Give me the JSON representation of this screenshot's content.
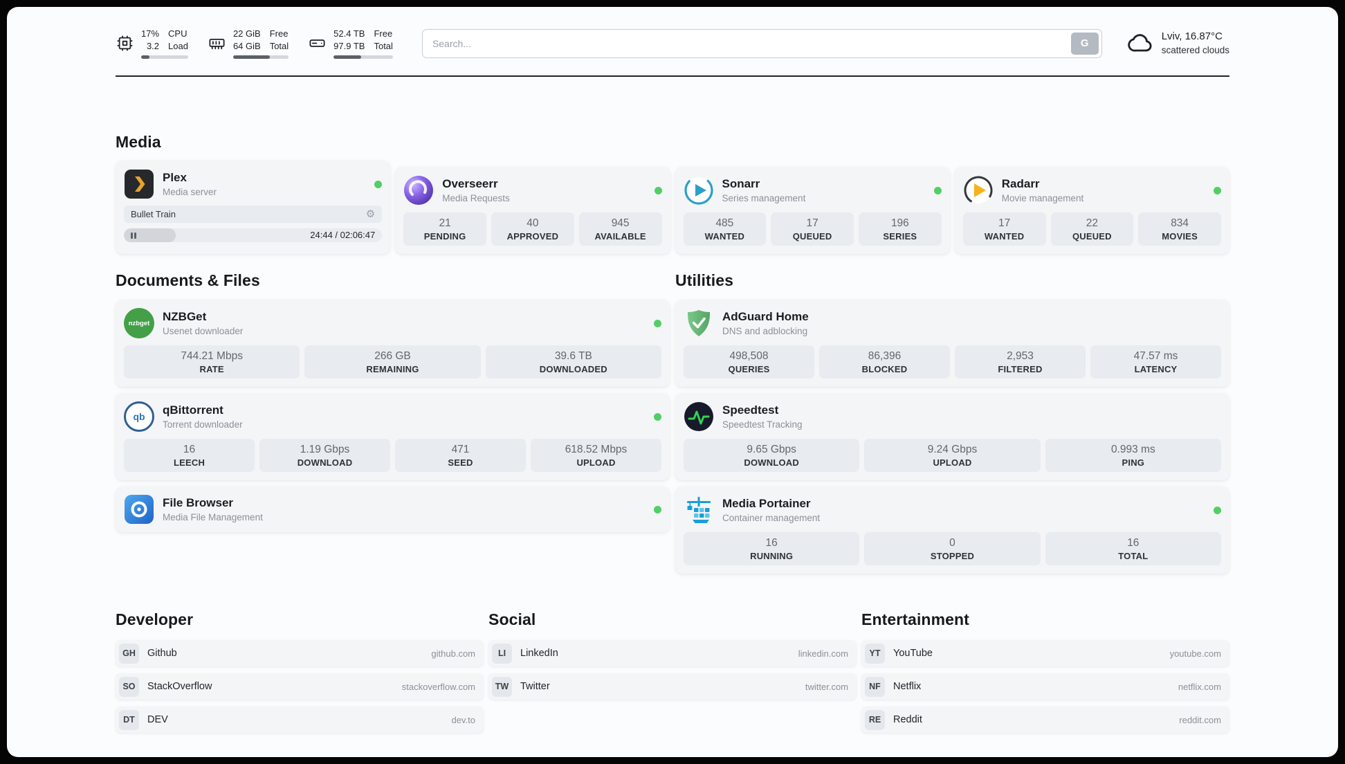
{
  "colors": {
    "status_online": "#51cf66",
    "plex_orange": "#e8a22b",
    "accent_blue": "#1a9fd6"
  },
  "header": {
    "cpu": {
      "value_top": "17%",
      "value_bottom": "3.2",
      "label_top": "CPU",
      "label_bottom": "Load",
      "bar": "17%"
    },
    "ram": {
      "value_top": "22 GiB",
      "value_bottom": "64 GiB",
      "label_top": "Free",
      "label_bottom": "Total",
      "bar": "66%"
    },
    "disk": {
      "value_top": "52.4 TB",
      "value_bottom": "97.9 TB",
      "label_top": "Free",
      "label_bottom": "Total",
      "bar": "46%"
    },
    "search": {
      "placeholder": "Search...",
      "engine_label": "G"
    },
    "weather": {
      "location": "Lviv, 16.87°C",
      "condition": "scattered clouds"
    }
  },
  "sections": {
    "media": {
      "title": "Media",
      "plex": {
        "name": "Plex",
        "subtitle": "Media server",
        "now_playing": "Bullet Train",
        "time": "24:44 / 02:06:47",
        "progress": "20%"
      },
      "overseerr": {
        "name": "Overseerr",
        "subtitle": "Media Requests",
        "stats": [
          {
            "value": "21",
            "label": "PENDING"
          },
          {
            "value": "40",
            "label": "APPROVED"
          },
          {
            "value": "945",
            "label": "AVAILABLE"
          }
        ]
      },
      "sonarr": {
        "name": "Sonarr",
        "subtitle": "Series management",
        "stats": [
          {
            "value": "485",
            "label": "WANTED"
          },
          {
            "value": "17",
            "label": "QUEUED"
          },
          {
            "value": "196",
            "label": "SERIES"
          }
        ]
      },
      "radarr": {
        "name": "Radarr",
        "subtitle": "Movie management",
        "stats": [
          {
            "value": "17",
            "label": "WANTED"
          },
          {
            "value": "22",
            "label": "QUEUED"
          },
          {
            "value": "834",
            "label": "MOVIES"
          }
        ]
      }
    },
    "documents": {
      "title": "Documents & Files",
      "nzbget": {
        "name": "NZBGet",
        "subtitle": "Usenet downloader",
        "icon_label": "nzbget",
        "stats": [
          {
            "value": "744.21 Mbps",
            "label": "RATE"
          },
          {
            "value": "266 GB",
            "label": "REMAINING"
          },
          {
            "value": "39.6 TB",
            "label": "DOWNLOADED"
          }
        ]
      },
      "qbittorrent": {
        "name": "qBittorrent",
        "subtitle": "Torrent downloader",
        "icon_label": "qb",
        "stats": [
          {
            "value": "16",
            "label": "LEECH"
          },
          {
            "value": "1.19 Gbps",
            "label": "DOWNLOAD"
          },
          {
            "value": "471",
            "label": "SEED"
          },
          {
            "value": "618.52 Mbps",
            "label": "UPLOAD"
          }
        ]
      },
      "filebrowser": {
        "name": "File Browser",
        "subtitle": "Media File Management"
      }
    },
    "utilities": {
      "title": "Utilities",
      "adguard": {
        "name": "AdGuard Home",
        "subtitle": "DNS and adblocking",
        "stats": [
          {
            "value": "498,508",
            "label": "QUERIES"
          },
          {
            "value": "86,396",
            "label": "BLOCKED"
          },
          {
            "value": "2,953",
            "label": "FILTERED"
          },
          {
            "value": "47.57 ms",
            "label": "LATENCY"
          }
        ]
      },
      "speedtest": {
        "name": "Speedtest",
        "subtitle": "Speedtest Tracking",
        "stats": [
          {
            "value": "9.65 Gbps",
            "label": "DOWNLOAD"
          },
          {
            "value": "9.24 Gbps",
            "label": "UPLOAD"
          },
          {
            "value": "0.993 ms",
            "label": "PING"
          }
        ]
      },
      "portainer": {
        "name": "Media Portainer",
        "subtitle": "Container management",
        "stats": [
          {
            "value": "16",
            "label": "RUNNING"
          },
          {
            "value": "0",
            "label": "STOPPED"
          },
          {
            "value": "16",
            "label": "TOTAL"
          }
        ]
      }
    },
    "developer": {
      "title": "Developer",
      "links": [
        {
          "abbr": "GH",
          "name": "Github",
          "url": "github.com"
        },
        {
          "abbr": "SO",
          "name": "StackOverflow",
          "url": "stackoverflow.com"
        },
        {
          "abbr": "DT",
          "name": "DEV",
          "url": "dev.to"
        }
      ]
    },
    "social": {
      "title": "Social",
      "links": [
        {
          "abbr": "LI",
          "name": "LinkedIn",
          "url": "linkedin.com"
        },
        {
          "abbr": "TW",
          "name": "Twitter",
          "url": "twitter.com"
        }
      ]
    },
    "entertainment": {
      "title": "Entertainment",
      "links": [
        {
          "abbr": "YT",
          "name": "YouTube",
          "url": "youtube.com"
        },
        {
          "abbr": "NF",
          "name": "Netflix",
          "url": "netflix.com"
        },
        {
          "abbr": "RE",
          "name": "Reddit",
          "url": "reddit.com"
        }
      ]
    }
  }
}
